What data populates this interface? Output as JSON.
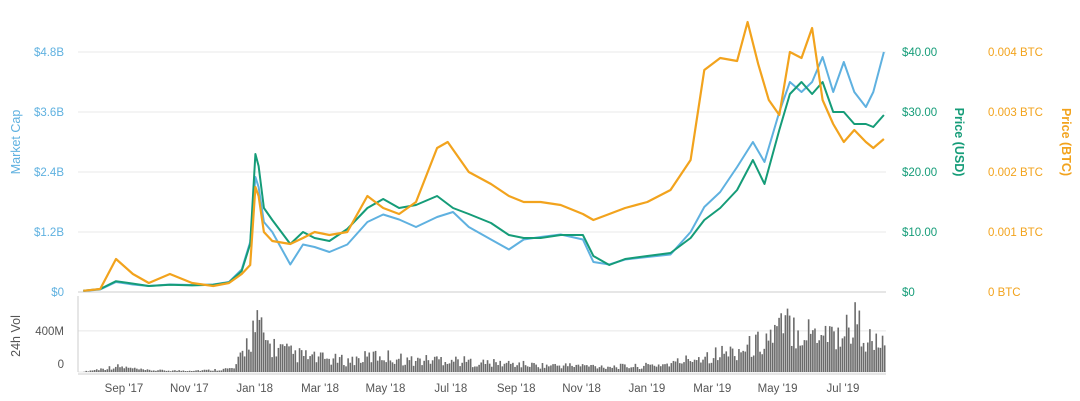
{
  "chart_data": {
    "type": "line",
    "colors": {
      "market_cap": "#5fb1e0",
      "price_usd": "#159c78",
      "price_btc": "#f2a31d",
      "volume": "#6b6b6b",
      "grid": "#e8e8e8",
      "axis_text": "#555555"
    },
    "x": {
      "ticks": [
        "Sep '17",
        "Nov '17",
        "Jan '18",
        "Mar '18",
        "May '18",
        "Jul '18",
        "Sep '18",
        "Nov '18",
        "Jan '19",
        "Mar '19",
        "May '19",
        "Jul '19"
      ]
    },
    "axes": {
      "market_cap": {
        "label": "Market Cap",
        "ticks": [
          "$0",
          "$1.2B",
          "$2.4B",
          "$3.6B",
          "$4.8B"
        ],
        "ylim": [
          0,
          4800000000
        ]
      },
      "price_usd": {
        "label": "Price (USD)",
        "ticks": [
          "$0",
          "$10.00",
          "$20.00",
          "$30.00",
          "$40.00"
        ],
        "ylim": [
          0,
          40
        ]
      },
      "price_btc": {
        "label": "Price (BTC)",
        "ticks": [
          "0 BTC",
          "0.001 BTC",
          "0.002 BTC",
          "0.003 BTC",
          "0.004 BTC"
        ],
        "ylim": [
          0,
          0.004
        ]
      },
      "volume": {
        "label": "24h Vol",
        "ticks": [
          "0",
          "400M"
        ],
        "ylim": [
          0,
          700000000
        ]
      }
    },
    "series": [
      {
        "name": "Market Cap",
        "axis": "market_cap",
        "points": [
          [
            "2017-07-25",
            20000000.0
          ],
          [
            "2017-08-10",
            50000000.0
          ],
          [
            "2017-08-25",
            200000000.0
          ],
          [
            "2017-09-10",
            150000000.0
          ],
          [
            "2017-09-25",
            120000000.0
          ],
          [
            "2017-10-15",
            150000000.0
          ],
          [
            "2017-11-05",
            140000000.0
          ],
          [
            "2017-11-25",
            150000000.0
          ],
          [
            "2017-12-10",
            200000000.0
          ],
          [
            "2017-12-22",
            450000000.0
          ],
          [
            "2017-12-30",
            1000000000.0
          ],
          [
            "2018-01-04",
            2300000000.0
          ],
          [
            "2018-01-07",
            2100000000.0
          ],
          [
            "2018-01-12",
            1400000000.0
          ],
          [
            "2018-01-20",
            1200000000.0
          ],
          [
            "2018-02-06",
            550000000.0
          ],
          [
            "2018-02-18",
            950000000.0
          ],
          [
            "2018-03-01",
            900000000.0
          ],
          [
            "2018-03-15",
            800000000.0
          ],
          [
            "2018-04-01",
            950000000.0
          ],
          [
            "2018-04-20",
            1400000000.0
          ],
          [
            "2018-05-05",
            1550000000.0
          ],
          [
            "2018-05-20",
            1450000000.0
          ],
          [
            "2018-06-05",
            1300000000.0
          ],
          [
            "2018-06-25",
            1500000000.0
          ],
          [
            "2018-07-10",
            1600000000.0
          ],
          [
            "2018-07-25",
            1300000000.0
          ],
          [
            "2018-08-15",
            1050000000.0
          ],
          [
            "2018-09-01",
            850000000.0
          ],
          [
            "2018-09-15",
            1050000000.0
          ],
          [
            "2018-10-01",
            1100000000.0
          ],
          [
            "2018-10-20",
            1150000000.0
          ],
          [
            "2018-11-10",
            1050000000.0
          ],
          [
            "2018-11-20",
            600000000.0
          ],
          [
            "2018-12-05",
            550000000.0
          ],
          [
            "2018-12-20",
            650000000.0
          ],
          [
            "2019-01-10",
            700000000.0
          ],
          [
            "2019-02-01",
            750000000.0
          ],
          [
            "2019-02-20",
            1200000000.0
          ],
          [
            "2019-03-05",
            1700000000.0
          ],
          [
            "2019-03-20",
            2000000000.0
          ],
          [
            "2019-04-05",
            2500000000.0
          ],
          [
            "2019-04-20",
            3000000000.0
          ],
          [
            "2019-05-01",
            2600000000.0
          ],
          [
            "2019-05-15",
            3600000000.0
          ],
          [
            "2019-05-25",
            4200000000.0
          ],
          [
            "2019-06-05",
            4000000000.0
          ],
          [
            "2019-06-15",
            4200000000.0
          ],
          [
            "2019-06-25",
            4700000000.0
          ],
          [
            "2019-07-05",
            4000000000.0
          ],
          [
            "2019-07-15",
            4600000000.0
          ],
          [
            "2019-07-25",
            4000000000.0
          ],
          [
            "2019-08-05",
            3700000000.0
          ],
          [
            "2019-08-12",
            4000000000.0
          ],
          [
            "2019-08-22",
            4800000000.0
          ]
        ]
      },
      {
        "name": "Price (USD)",
        "axis": "price_usd",
        "points": [
          [
            "2017-07-25",
            0.2
          ],
          [
            "2017-08-10",
            0.5
          ],
          [
            "2017-08-25",
            1.8
          ],
          [
            "2017-09-10",
            1.4
          ],
          [
            "2017-09-25",
            1.0
          ],
          [
            "2017-10-15",
            1.2
          ],
          [
            "2017-11-05",
            1.1
          ],
          [
            "2017-11-25",
            1.2
          ],
          [
            "2017-12-10",
            1.6
          ],
          [
            "2017-12-22",
            3.5
          ],
          [
            "2017-12-30",
            8.0
          ],
          [
            "2018-01-04",
            23.0
          ],
          [
            "2018-01-07",
            21.0
          ],
          [
            "2018-01-12",
            14.0
          ],
          [
            "2018-01-20",
            12.0
          ],
          [
            "2018-02-06",
            8.0
          ],
          [
            "2018-02-18",
            10.0
          ],
          [
            "2018-03-01",
            9.0
          ],
          [
            "2018-03-15",
            8.5
          ],
          [
            "2018-04-01",
            10.5
          ],
          [
            "2018-04-20",
            14.0
          ],
          [
            "2018-05-05",
            15.5
          ],
          [
            "2018-05-20",
            14.0
          ],
          [
            "2018-06-05",
            14.5
          ],
          [
            "2018-06-25",
            16.0
          ],
          [
            "2018-07-10",
            14.0
          ],
          [
            "2018-07-25",
            13.0
          ],
          [
            "2018-08-15",
            11.5
          ],
          [
            "2018-09-01",
            9.5
          ],
          [
            "2018-09-15",
            9.0
          ],
          [
            "2018-10-01",
            9.0
          ],
          [
            "2018-10-20",
            9.5
          ],
          [
            "2018-11-10",
            9.5
          ],
          [
            "2018-11-20",
            6.0
          ],
          [
            "2018-12-05",
            4.5
          ],
          [
            "2018-12-20",
            5.5
          ],
          [
            "2019-01-10",
            6.0
          ],
          [
            "2019-02-01",
            6.5
          ],
          [
            "2019-02-20",
            9.0
          ],
          [
            "2019-03-05",
            12.0
          ],
          [
            "2019-03-20",
            14.0
          ],
          [
            "2019-04-05",
            17.0
          ],
          [
            "2019-04-20",
            22.0
          ],
          [
            "2019-05-01",
            18.0
          ],
          [
            "2019-05-15",
            27.0
          ],
          [
            "2019-05-25",
            33.0
          ],
          [
            "2019-06-05",
            35.0
          ],
          [
            "2019-06-15",
            33.0
          ],
          [
            "2019-06-25",
            35.0
          ],
          [
            "2019-07-05",
            30.0
          ],
          [
            "2019-07-15",
            30.0
          ],
          [
            "2019-07-25",
            28.0
          ],
          [
            "2019-08-05",
            28.0
          ],
          [
            "2019-08-12",
            27.5
          ],
          [
            "2019-08-22",
            29.5
          ]
        ]
      },
      {
        "name": "Price (BTC)",
        "axis": "price_btc",
        "points": [
          [
            "2017-07-25",
            2e-05
          ],
          [
            "2017-08-10",
            5e-05
          ],
          [
            "2017-08-25",
            0.00055
          ],
          [
            "2017-09-10",
            0.0003
          ],
          [
            "2017-09-25",
            0.00015
          ],
          [
            "2017-10-15",
            0.0003
          ],
          [
            "2017-11-05",
            0.00015
          ],
          [
            "2017-11-25",
            0.0001
          ],
          [
            "2017-12-10",
            0.00015
          ],
          [
            "2017-12-22",
            0.0003
          ],
          [
            "2017-12-30",
            0.00045
          ],
          [
            "2018-01-04",
            0.00175
          ],
          [
            "2018-01-07",
            0.0016
          ],
          [
            "2018-01-12",
            0.001
          ],
          [
            "2018-01-20",
            0.00085
          ],
          [
            "2018-02-06",
            0.0008
          ],
          [
            "2018-02-18",
            0.0009
          ],
          [
            "2018-03-01",
            0.001
          ],
          [
            "2018-03-15",
            0.00095
          ],
          [
            "2018-04-01",
            0.001
          ],
          [
            "2018-04-20",
            0.0016
          ],
          [
            "2018-05-05",
            0.0014
          ],
          [
            "2018-05-20",
            0.0013
          ],
          [
            "2018-06-05",
            0.0015
          ],
          [
            "2018-06-25",
            0.0024
          ],
          [
            "2018-07-05",
            0.0025
          ],
          [
            "2018-07-25",
            0.002
          ],
          [
            "2018-08-15",
            0.0018
          ],
          [
            "2018-09-01",
            0.0016
          ],
          [
            "2018-09-15",
            0.0015
          ],
          [
            "2018-10-01",
            0.0015
          ],
          [
            "2018-10-20",
            0.00145
          ],
          [
            "2018-11-10",
            0.0013
          ],
          [
            "2018-11-20",
            0.0012
          ],
          [
            "2018-12-05",
            0.0013
          ],
          [
            "2018-12-20",
            0.0014
          ],
          [
            "2019-01-10",
            0.0015
          ],
          [
            "2019-02-01",
            0.0017
          ],
          [
            "2019-02-20",
            0.0022
          ],
          [
            "2019-03-05",
            0.0037
          ],
          [
            "2019-03-20",
            0.0039
          ],
          [
            "2019-04-05",
            0.00385
          ],
          [
            "2019-04-15",
            0.0045
          ],
          [
            "2019-04-25",
            0.0038
          ],
          [
            "2019-05-05",
            0.0032
          ],
          [
            "2019-05-15",
            0.00295
          ],
          [
            "2019-05-25",
            0.004
          ],
          [
            "2019-06-05",
            0.0039
          ],
          [
            "2019-06-15",
            0.0044
          ],
          [
            "2019-06-25",
            0.0032
          ],
          [
            "2019-07-05",
            0.0028
          ],
          [
            "2019-07-15",
            0.0025
          ],
          [
            "2019-07-25",
            0.0027
          ],
          [
            "2019-08-05",
            0.0025
          ],
          [
            "2019-08-12",
            0.0024
          ],
          [
            "2019-08-22",
            0.00255
          ]
        ]
      }
    ],
    "volume_points": [
      [
        "2017-07-25",
        5000000.0
      ],
      [
        "2017-08-25",
        60000000.0
      ],
      [
        "2017-09-20",
        20000000.0
      ],
      [
        "2017-10-20",
        15000000.0
      ],
      [
        "2017-11-20",
        20000000.0
      ],
      [
        "2017-12-15",
        40000000.0
      ],
      [
        "2018-01-01",
        450000000.0
      ],
      [
        "2018-01-06",
        480000000.0
      ],
      [
        "2018-01-15",
        300000000.0
      ],
      [
        "2018-02-05",
        200000000.0
      ],
      [
        "2018-03-01",
        150000000.0
      ],
      [
        "2018-04-01",
        120000000.0
      ],
      [
        "2018-05-01",
        180000000.0
      ],
      [
        "2018-06-01",
        120000000.0
      ],
      [
        "2018-07-01",
        140000000.0
      ],
      [
        "2018-08-01",
        100000000.0
      ],
      [
        "2018-09-01",
        90000000.0
      ],
      [
        "2018-10-01",
        70000000.0
      ],
      [
        "2018-11-01",
        70000000.0
      ],
      [
        "2018-12-01",
        60000000.0
      ],
      [
        "2019-01-01",
        60000000.0
      ],
      [
        "2019-02-01",
        90000000.0
      ],
      [
        "2019-03-01",
        170000000.0
      ],
      [
        "2019-04-01",
        220000000.0
      ],
      [
        "2019-04-20",
        280000000.0
      ],
      [
        "2019-05-15",
        450000000.0
      ],
      [
        "2019-05-25",
        520000000.0
      ],
      [
        "2019-06-10",
        420000000.0
      ],
      [
        "2019-06-25",
        480000000.0
      ],
      [
        "2019-07-10",
        380000000.0
      ],
      [
        "2019-07-25",
        550000000.0
      ],
      [
        "2019-08-10",
        300000000.0
      ],
      [
        "2019-08-22",
        280000000.0
      ]
    ]
  }
}
